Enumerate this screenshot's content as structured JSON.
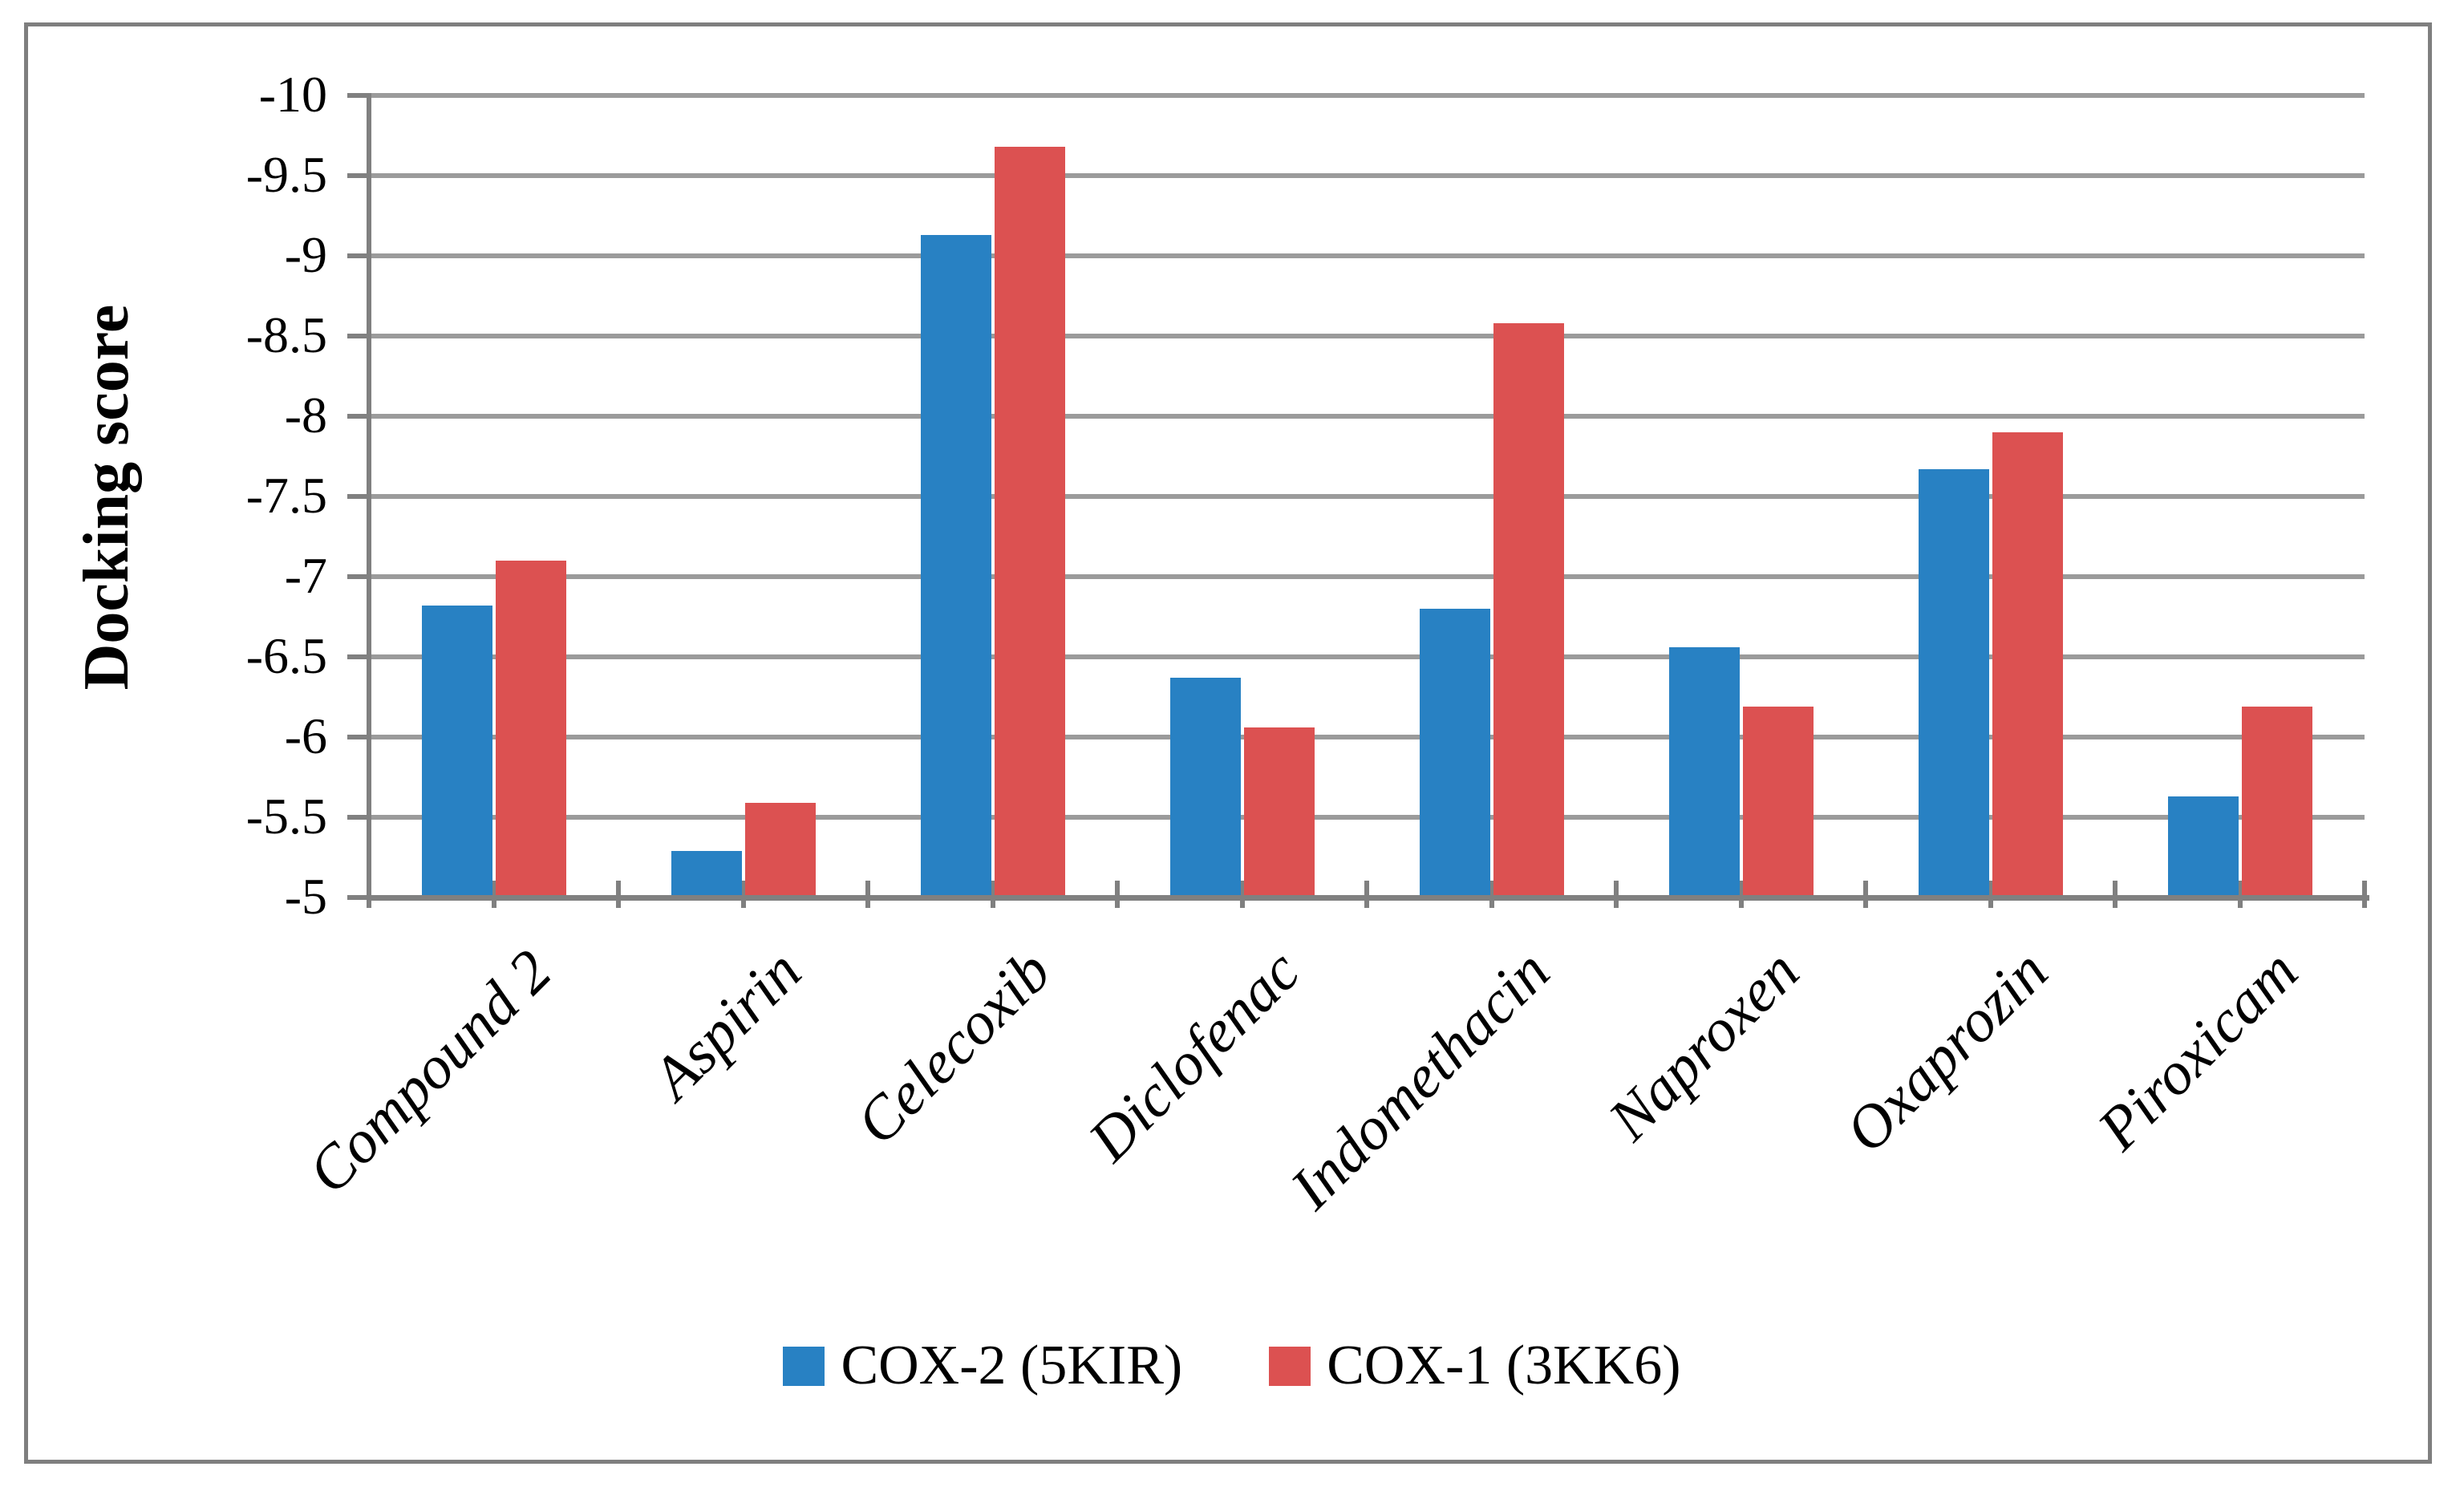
{
  "figure": {
    "ylabel": "Docking score",
    "colors": {
      "cox2_blue": "#2881c3",
      "cox1_red": "#dc5151",
      "gridline_gray": "#9b9b9b",
      "axis_gray": "#808080",
      "border_gray": "#7f7f7f"
    }
  },
  "chart_data": {
    "type": "bar",
    "title": "",
    "xlabel": "",
    "ylabel": "Docking score",
    "categories": [
      "Compound 2",
      "Aspirin",
      "Celecoxib",
      "Diclofenac",
      "Indomethacin",
      "Naproxen",
      "Oxaprozin",
      "Piroxicam"
    ],
    "series": [
      {
        "name": "COX-2 (5KIR)",
        "color": "#2881c3",
        "values": [
          -6.82,
          -5.29,
          -9.13,
          -6.37,
          -6.8,
          -6.56,
          -7.67,
          -5.63
        ]
      },
      {
        "name": "COX-1 (3KK6)",
        "color": "#dc5151",
        "values": [
          -7.1,
          -5.59,
          -9.68,
          -6.06,
          -8.58,
          -6.19,
          -7.9,
          -6.19
        ]
      }
    ],
    "ylim": [
      -10,
      -5
    ],
    "yticks": [
      -10,
      -9.5,
      -9,
      -8.5,
      -8,
      -7.5,
      -7,
      -6.5,
      -6,
      -5.5,
      -5
    ],
    "y_axis_inverted_display": "negative values increase upward",
    "grid": true,
    "legend_position": "bottom"
  }
}
